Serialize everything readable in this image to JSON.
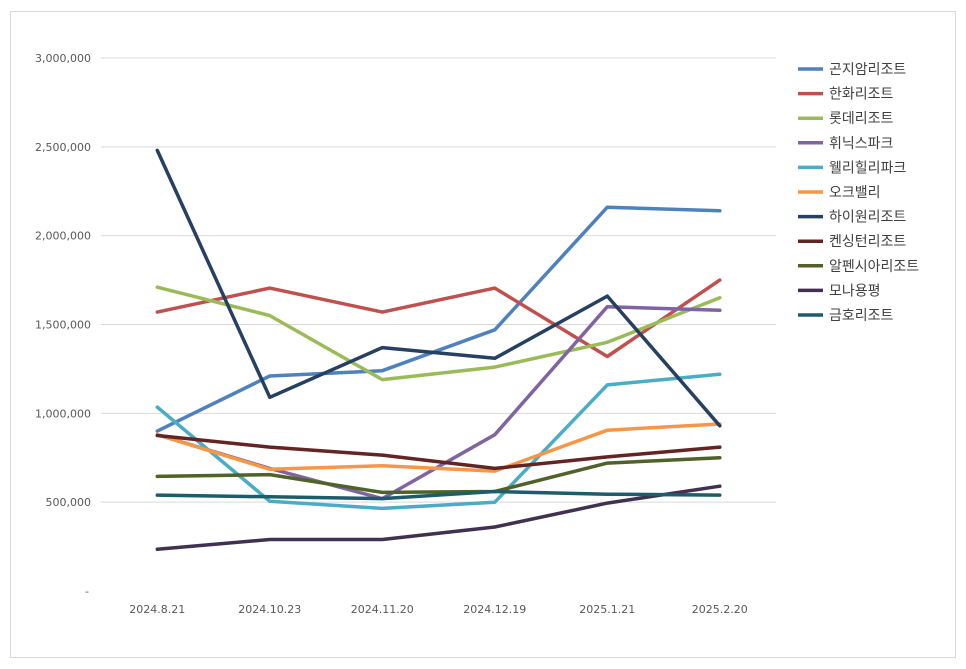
{
  "chart_data": {
    "type": "line",
    "title": "",
    "xlabel": "",
    "ylabel": "",
    "categories": [
      "2024.8.21",
      "2024.10.23",
      "2024.11.20",
      "2024.12.19",
      "2025.1.21",
      "2025.2.20"
    ],
    "ylim": [
      0,
      3000000
    ],
    "yticks": [
      0,
      500000,
      1000000,
      1500000,
      2000000,
      2500000,
      3000000
    ],
    "ytick_labels": [
      "-",
      "500,000",
      "1,000,000",
      "1,500,000",
      "2,000,000",
      "2,500,000",
      "3,000,000"
    ],
    "grid": true,
    "legend_position": "right",
    "series": [
      {
        "name": "곤지암리조트",
        "color": "#4f81bd",
        "values": [
          900000,
          1210000,
          1240000,
          1470000,
          2160000,
          2140000
        ]
      },
      {
        "name": "한화리조트",
        "color": "#c0504d",
        "values": [
          1570000,
          1705000,
          1570000,
          1705000,
          1320000,
          1750000
        ]
      },
      {
        "name": "롯데리조트",
        "color": "#9bbb59",
        "values": [
          1710000,
          1550000,
          1190000,
          1260000,
          1400000,
          1650000
        ]
      },
      {
        "name": "휘닉스파크",
        "color": "#8064a2",
        "values": [
          880000,
          690000,
          520000,
          880000,
          1600000,
          1580000
        ]
      },
      {
        "name": "웰리힐리파크",
        "color": "#4bacc6",
        "values": [
          1035000,
          505000,
          465000,
          500000,
          1160000,
          1220000
        ]
      },
      {
        "name": "오크밸리",
        "color": "#f79646",
        "values": [
          880000,
          685000,
          705000,
          675000,
          905000,
          940000
        ]
      },
      {
        "name": "하이원리조트",
        "color": "#254061",
        "values": [
          2480000,
          1090000,
          1370000,
          1310000,
          1660000,
          930000
        ]
      },
      {
        "name": "켄싱턴리조트",
        "color": "#632523",
        "values": [
          875000,
          810000,
          765000,
          690000,
          755000,
          810000
        ]
      },
      {
        "name": "알펜시아리조트",
        "color": "#4f6228",
        "values": [
          645000,
          655000,
          555000,
          560000,
          720000,
          750000
        ]
      },
      {
        "name": "모나용평",
        "color": "#403151",
        "values": [
          235000,
          290000,
          290000,
          360000,
          495000,
          590000
        ]
      },
      {
        "name": "금호리조트",
        "color": "#1f5c6b",
        "values": [
          540000,
          530000,
          520000,
          560000,
          545000,
          540000
        ]
      }
    ]
  }
}
